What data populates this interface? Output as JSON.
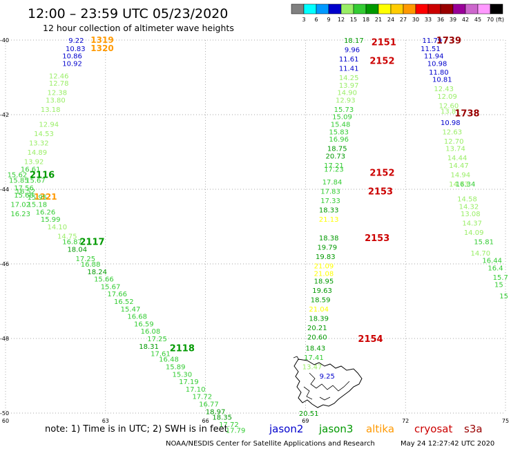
{
  "header": {
    "title": "12:00 – 23:59 UTC 05/23/2020",
    "subtitle": "12 hour collection of altimeter wave heights"
  },
  "colorbar": {
    "unit": "(ft)",
    "ticks": [
      "3",
      "6",
      "9",
      "12",
      "15",
      "18",
      "21",
      "24",
      "27",
      "30",
      "33",
      "36",
      "39",
      "42",
      "45",
      "70"
    ],
    "colors": [
      "#808080",
      "#00ffff",
      "#0099ff",
      "#0000cc",
      "#99ee66",
      "#33cc33",
      "#009900",
      "#ffff00",
      "#ffcc00",
      "#ff9900",
      "#ff0000",
      "#cc0000",
      "#990000",
      "#990099",
      "#cc66cc",
      "#ff99ff",
      "#000000"
    ]
  },
  "footer": {
    "note": "note:  1) Time is in UTC;  2) SWH is in feet",
    "satellites": [
      {
        "name": "jason2",
        "color": "#0000cc"
      },
      {
        "name": "jason3",
        "color": "#009900"
      },
      {
        "name": "altika",
        "color": "#ff9900"
      },
      {
        "name": "cryosat",
        "color": "#cc0000"
      },
      {
        "name": "s3a",
        "color": "#990000"
      }
    ],
    "credit": "NOAA/NESDIS Center for Satellite Applications and Research",
    "timestamp": "May 24 12:27:42 UTC 2020"
  },
  "chart_data": {
    "type": "scatter",
    "xlim": [
      60,
      75
    ],
    "ylim": [
      -50,
      -40
    ],
    "xticks": [
      "60",
      "63",
      "66",
      "69",
      "72",
      "75"
    ],
    "yticks": [
      "-40",
      "-42",
      "-44",
      "-46",
      "-48",
      "-50"
    ],
    "grid": "dotted",
    "passes": [
      {
        "sat": "jason2",
        "points": [
          [
            62.12,
            -40.0,
            "9.22"
          ],
          [
            62.1,
            -40.22,
            "10.83"
          ],
          [
            62.0,
            -40.42,
            "10.86"
          ],
          [
            62.0,
            -40.62,
            "10.92"
          ]
        ]
      },
      {
        "sat": "altika",
        "points": [
          [
            62.9,
            -40.0,
            "1319"
          ],
          [
            62.9,
            -40.22,
            "1320"
          ],
          [
            61.2,
            -44.2,
            "1321"
          ]
        ]
      },
      {
        "sat": "jason3",
        "points": [
          [
            61.6,
            -40.95,
            "12.46"
          ],
          [
            61.6,
            -41.15,
            "12.78"
          ],
          [
            61.55,
            -41.4,
            "12.38"
          ],
          [
            61.5,
            -41.6,
            "13.80"
          ],
          [
            61.35,
            -41.85,
            "13.18"
          ],
          [
            61.3,
            -42.25,
            "12.94"
          ],
          [
            61.15,
            -42.5,
            "14.53"
          ],
          [
            61.0,
            -42.75,
            "13.32"
          ],
          [
            60.95,
            -43.0,
            "14.89"
          ],
          [
            60.85,
            -43.25,
            "13.92"
          ],
          [
            60.75,
            -43.45,
            "16.61"
          ],
          [
            60.35,
            -43.6,
            "15.62"
          ],
          [
            60.4,
            -43.75,
            "15.85"
          ],
          [
            60.9,
            -43.75,
            "15.67"
          ],
          [
            60.55,
            -43.95,
            "17.56"
          ],
          [
            60.6,
            -44.05,
            "16.52"
          ],
          [
            60.55,
            -44.15,
            "15.68"
          ],
          [
            60.95,
            -44.2,
            "15.95"
          ],
          [
            60.45,
            -44.4,
            "17.02"
          ],
          [
            60.95,
            -44.4,
            "15.18"
          ],
          [
            60.45,
            -44.65,
            "16.23"
          ],
          [
            61.2,
            -44.6,
            "16.26"
          ],
          [
            61.35,
            -44.8,
            "15.99"
          ],
          [
            61.55,
            -45.0,
            "14.10"
          ],
          [
            61.85,
            -45.25,
            "14.75"
          ],
          [
            62.0,
            -45.4,
            "16.87"
          ],
          [
            62.15,
            -45.6,
            "18.04"
          ],
          [
            62.4,
            -45.85,
            "17.25"
          ],
          [
            62.55,
            -46.0,
            "16.88"
          ],
          [
            62.75,
            -46.2,
            "18.24"
          ],
          [
            62.95,
            -46.4,
            "15.66"
          ],
          [
            63.15,
            -46.6,
            "15.67"
          ],
          [
            63.35,
            -46.8,
            "17.66"
          ],
          [
            63.55,
            -47.0,
            "16.52"
          ],
          [
            63.75,
            -47.2,
            "15.47"
          ],
          [
            63.95,
            -47.4,
            "16.68"
          ],
          [
            64.15,
            -47.6,
            "16.59"
          ],
          [
            64.35,
            -47.8,
            "16.08"
          ],
          [
            64.55,
            -48.0,
            "17.25"
          ],
          [
            64.3,
            -48.2,
            "18.31"
          ],
          [
            64.65,
            -48.4,
            "17.61"
          ],
          [
            64.9,
            -48.55,
            "16.48"
          ],
          [
            65.1,
            -48.75,
            "15.89"
          ],
          [
            65.3,
            -48.95,
            "15.30"
          ],
          [
            65.5,
            -49.15,
            "17.19"
          ],
          [
            65.7,
            -49.35,
            "17.10"
          ],
          [
            65.9,
            -49.55,
            "17.72"
          ],
          [
            66.1,
            -49.75,
            "16.77"
          ],
          [
            66.3,
            -49.95,
            "18.97"
          ],
          [
            66.5,
            -50.1,
            "18.35"
          ],
          [
            66.7,
            -50.3,
            "17.72"
          ],
          [
            66.9,
            -50.45,
            "17.79"
          ]
        ]
      },
      {
        "sat": "jason3",
        "labels": [
          [
            61.1,
            -43.6,
            "2116"
          ],
          [
            62.6,
            -45.4,
            "2117"
          ],
          [
            65.3,
            -48.25,
            "2118"
          ]
        ]
      },
      {
        "sat": "jason3",
        "points": [
          [
            70.45,
            -40.0,
            "18.17"
          ],
          [
            70.3,
            -41.0,
            "14.25"
          ],
          [
            70.3,
            -41.2,
            "13.97"
          ],
          [
            70.25,
            -41.4,
            "14.90"
          ],
          [
            70.2,
            -41.6,
            "12.93"
          ],
          [
            70.15,
            -41.85,
            "15.73"
          ],
          [
            70.1,
            -42.05,
            "15.09"
          ],
          [
            70.05,
            -42.25,
            "15.48"
          ],
          [
            70.0,
            -42.45,
            "15.83"
          ],
          [
            70.0,
            -42.65,
            "16.96"
          ],
          [
            69.95,
            -42.9,
            "18.75"
          ],
          [
            69.9,
            -43.1,
            "20.73"
          ],
          [
            69.85,
            -43.35,
            "17.21"
          ],
          [
            69.85,
            -43.45,
            "17.23"
          ],
          [
            69.8,
            -43.8,
            "17.84"
          ],
          [
            69.75,
            -44.05,
            "17.83"
          ],
          [
            69.75,
            -44.3,
            "17.33"
          ],
          [
            69.7,
            -44.55,
            "18.33"
          ],
          [
            69.7,
            -45.3,
            "18.38"
          ],
          [
            69.65,
            -45.55,
            "19.79"
          ],
          [
            69.6,
            -45.8,
            "19.83"
          ],
          [
            69.55,
            -46.45,
            "18.95"
          ],
          [
            69.5,
            -46.7,
            "19.63"
          ],
          [
            69.45,
            -46.95,
            "18.59"
          ],
          [
            69.4,
            -47.45,
            "18.39"
          ],
          [
            69.35,
            -47.7,
            "20.21"
          ],
          [
            69.35,
            -47.95,
            "20.60"
          ],
          [
            69.3,
            -48.25,
            "18.43"
          ],
          [
            69.25,
            -48.5,
            "17.41"
          ],
          [
            69.2,
            -48.75,
            "13.47"
          ],
          [
            69.1,
            -50.0,
            "20.51"
          ]
        ]
      },
      {
        "sat": "altika",
        "points": [
          [
            69.7,
            -44.8,
            "21.13"
          ],
          [
            69.55,
            -46.05,
            "21.09"
          ],
          [
            69.55,
            -46.25,
            "21.08"
          ],
          [
            69.4,
            -47.2,
            "21.04"
          ]
        ]
      },
      {
        "sat": "jason2",
        "points": [
          [
            70.4,
            -40.25,
            "9.96"
          ],
          [
            70.3,
            -40.5,
            "11.61"
          ],
          [
            70.3,
            -40.75,
            "11.41"
          ],
          [
            69.65,
            -49.0,
            "9.25"
          ]
        ]
      },
      {
        "sat": "cryosat",
        "labels": [
          [
            71.35,
            -40.05,
            "2151"
          ],
          [
            71.3,
            -40.55,
            "2152"
          ],
          [
            71.3,
            -43.55,
            "2152"
          ],
          [
            71.25,
            -44.05,
            "2153"
          ],
          [
            71.15,
            -45.3,
            "2153"
          ],
          [
            70.95,
            -48.0,
            "2154"
          ]
        ]
      },
      {
        "sat": "jason2",
        "points": [
          [
            72.8,
            -40.0,
            "11.79"
          ],
          [
            72.75,
            -40.22,
            "11.51"
          ],
          [
            72.85,
            -40.42,
            "11.94"
          ],
          [
            72.95,
            -40.62,
            "10.98"
          ],
          [
            73.0,
            -40.85,
            "11.80"
          ],
          [
            73.1,
            -41.05,
            "10.81"
          ],
          [
            73.35,
            -42.2,
            "10.98"
          ]
        ]
      },
      {
        "sat": "jason3",
        "points": [
          [
            73.15,
            -41.3,
            "12.43"
          ],
          [
            73.25,
            -41.5,
            "12.09"
          ],
          [
            73.3,
            -41.75,
            "12.60"
          ],
          [
            73.35,
            -41.9,
            "13.81"
          ],
          [
            73.4,
            -42.45,
            "12.63"
          ],
          [
            73.45,
            -42.7,
            "12.70"
          ],
          [
            73.5,
            -42.9,
            "13.74"
          ],
          [
            73.55,
            -43.15,
            "14.44"
          ],
          [
            73.6,
            -43.35,
            "14.47"
          ],
          [
            73.65,
            -43.6,
            "14.94"
          ],
          [
            73.6,
            -43.85,
            "14.73"
          ],
          [
            73.8,
            -43.85,
            "16.34"
          ],
          [
            73.85,
            -44.25,
            "14.58"
          ],
          [
            73.9,
            -44.45,
            "14.32"
          ],
          [
            73.95,
            -44.65,
            "13.08"
          ],
          [
            74.0,
            -44.9,
            "14.37"
          ],
          [
            74.05,
            -45.15,
            "14.09"
          ],
          [
            74.35,
            -45.4,
            "15.81"
          ],
          [
            74.25,
            -45.7,
            "14.70"
          ],
          [
            74.6,
            -45.9,
            "16.44"
          ],
          [
            74.7,
            -46.1,
            "16.4"
          ],
          [
            74.85,
            -46.35,
            "15.7"
          ],
          [
            74.8,
            -46.55,
            "15"
          ],
          [
            74.95,
            -46.85,
            "15"
          ]
        ]
      },
      {
        "sat": "s3a",
        "labels": [
          [
            73.3,
            -40.0,
            "1739"
          ],
          [
            73.85,
            -41.95,
            "1738"
          ]
        ]
      }
    ]
  }
}
